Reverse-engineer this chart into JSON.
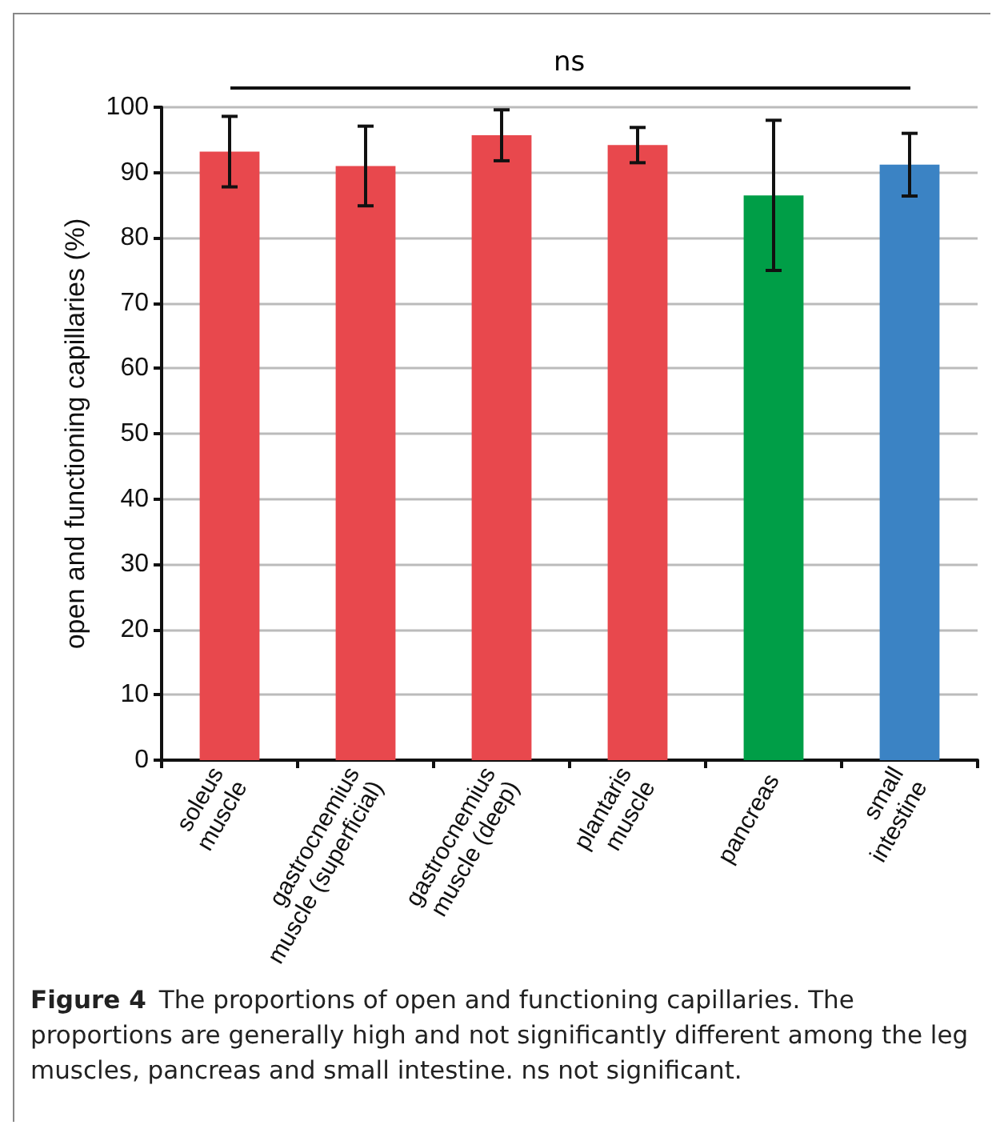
{
  "chart_data": {
    "type": "bar",
    "ylabel": "open and functioning capillaries (%)",
    "categories": [
      "soleus\nmuscle",
      "gastrocnemius\nmuscle (superficial)",
      "gastrocnemius\nmuscle (deep)",
      "plantaris\nmuscle",
      "pancreas",
      "small\nintestine"
    ],
    "values": [
      93.2,
      91.0,
      95.7,
      94.2,
      86.5,
      91.2
    ],
    "errors": [
      5.4,
      6.1,
      3.9,
      2.7,
      11.5,
      4.8
    ],
    "colors": [
      "#e8484d",
      "#e8484d",
      "#e8484d",
      "#e8484d",
      "#009e47",
      "#3b83c4"
    ],
    "ylim": [
      0,
      100
    ],
    "yticks": [
      0,
      10,
      20,
      30,
      40,
      50,
      60,
      70,
      80,
      90,
      100
    ],
    "grid": "y",
    "annotations": [
      "ns",
      "Figure 4",
      "The proportions of open and functioning capillaries. The proportions are generally high and not significantly different among the leg muscles, pancreas and small intestine. ns not significant."
    ]
  }
}
